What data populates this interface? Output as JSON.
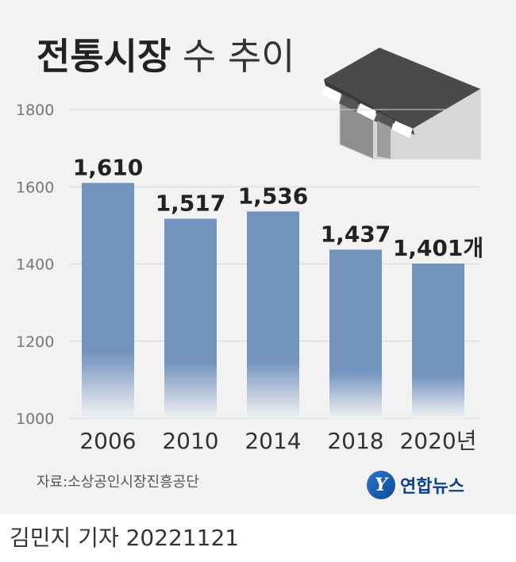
{
  "header": {
    "title_bold": "전통시장",
    "title_light": "수 추이"
  },
  "source": "자료:소상공인시장진흥공단",
  "logo": {
    "mark": "Y",
    "text": "연합뉴스"
  },
  "credit": "김민지 기자  20221121",
  "colors": {
    "bar_top": "#7393bf",
    "bar_bottom": "#f2f2f2",
    "background": "#f2f2f2",
    "grid": "#d6d6d6",
    "text": "#222222"
  },
  "icon": "market-stall-icon",
  "chart_data": {
    "type": "bar",
    "categories": [
      "2006",
      "2010",
      "2014",
      "2018",
      "2020년"
    ],
    "values": [
      1610,
      1517,
      1536,
      1437,
      1401
    ],
    "value_labels": [
      "1,610",
      "1,517",
      "1,536",
      "1,437",
      "1,401개"
    ],
    "title": "전통시장 수 추이",
    "xlabel": "",
    "ylabel": "",
    "ylim": [
      1000,
      1800
    ],
    "yticks": [
      1000,
      1200,
      1400,
      1600,
      1800
    ],
    "grid": true,
    "legend": "none"
  }
}
